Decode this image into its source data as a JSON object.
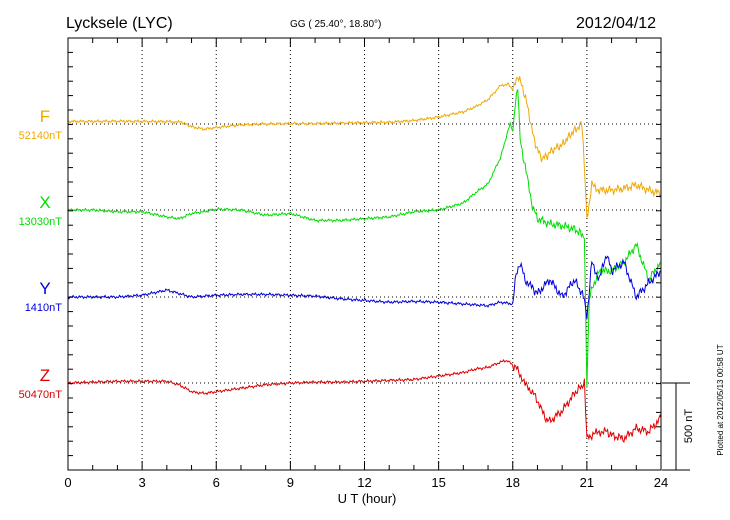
{
  "header": {
    "station": "Lycksele (LYC)",
    "coords": "GG ( 25.40°,  18.80°)",
    "date": "2012/04/12"
  },
  "footer": {
    "plotted_note": "Plotted at 2012/05/13 00:58 UT"
  },
  "colors": {
    "F": "#f0a800",
    "X": "#00dd00",
    "Y": "#0000dd",
    "Z": "#dd0000",
    "axis": "#000000"
  },
  "chart_data": {
    "type": "line",
    "title": "",
    "xlabel": "U T (hour)",
    "ylabel": "",
    "xlim": [
      0,
      24
    ],
    "x_ticks": [
      "0",
      "3",
      "6",
      "9",
      "12",
      "15",
      "18",
      "21",
      "24"
    ],
    "grid": true,
    "scale_bar_label": "500 nT",
    "scale_bar_nT": 500,
    "series": [
      {
        "name": "F",
        "baseline_label": "52140nT",
        "baseline_nT": 52140,
        "x": [
          0,
          1,
          2,
          3,
          4,
          4.6,
          5,
          5.5,
          6,
          7,
          8,
          9,
          10,
          11,
          12,
          13,
          14,
          15,
          16,
          16.5,
          17,
          17.5,
          17.8,
          18,
          18.1,
          18.2,
          18.4,
          18.6,
          18.8,
          19,
          19.2,
          19.4,
          19.6,
          20,
          20.4,
          20.8,
          20.9,
          21,
          21.2,
          21.5,
          22,
          22.5,
          23,
          23.5,
          24
        ],
        "values": [
          15,
          15,
          16,
          15,
          14,
          10,
          -15,
          -30,
          -20,
          -5,
          0,
          2,
          2,
          5,
          8,
          10,
          20,
          40,
          70,
          100,
          140,
          220,
          230,
          200,
          250,
          280,
          210,
          100,
          -50,
          -150,
          -200,
          -180,
          -150,
          -120,
          -50,
          0,
          -250,
          -550,
          -350,
          -380,
          -380,
          -370,
          -350,
          -380,
          -400
        ]
      },
      {
        "name": "X",
        "baseline_label": "13030nT",
        "baseline_nT": 13030,
        "x": [
          0,
          1,
          2,
          3,
          4,
          4.5,
          5,
          5.5,
          6,
          7,
          8,
          9,
          10,
          11,
          12,
          13,
          14,
          15,
          16,
          16.5,
          17,
          17.5,
          17.9,
          18,
          18.1,
          18.2,
          18.3,
          18.5,
          18.8,
          19,
          19.5,
          20,
          20.5,
          20.9,
          21,
          21.1,
          21.3,
          21.5,
          22,
          22.5,
          23,
          23.5,
          24
        ],
        "values": [
          0,
          0,
          -10,
          -10,
          -40,
          -50,
          -20,
          -10,
          5,
          0,
          -30,
          -20,
          -60,
          -60,
          -50,
          -40,
          -10,
          0,
          40,
          100,
          150,
          300,
          500,
          450,
          600,
          700,
          400,
          250,
          20,
          -50,
          -80,
          -90,
          -110,
          -150,
          -1000,
          -500,
          -420,
          -350,
          -350,
          -300,
          -200,
          -400,
          -300
        ]
      },
      {
        "name": "Y",
        "baseline_label": "1410nT",
        "baseline_nT": 1410,
        "x": [
          0,
          1,
          2,
          3,
          4,
          4.5,
          5,
          5.5,
          6,
          7,
          8,
          9,
          10,
          11,
          12,
          13,
          14,
          15,
          16,
          17,
          17.5,
          18,
          18.1,
          18.3,
          18.5,
          18.8,
          19,
          19.5,
          20,
          20.5,
          20.9,
          21,
          21.2,
          21.5,
          21.8,
          22,
          22.5,
          23,
          23.5,
          24
        ],
        "values": [
          0,
          0,
          0,
          10,
          40,
          20,
          0,
          5,
          10,
          15,
          15,
          10,
          5,
          -10,
          -20,
          -30,
          -25,
          -30,
          -40,
          -50,
          -30,
          -40,
          100,
          200,
          100,
          50,
          20,
          100,
          0,
          100,
          -10,
          -120,
          200,
          100,
          250,
          150,
          200,
          0,
          80,
          150
        ]
      },
      {
        "name": "Z",
        "baseline_label": "50470nT",
        "baseline_nT": 50470,
        "x": [
          0,
          1,
          2,
          3,
          4,
          4.5,
          5,
          5.5,
          6,
          7,
          8,
          9,
          10,
          11,
          12,
          13,
          14,
          15,
          16,
          16.5,
          17,
          17.5,
          17.8,
          18,
          18.2,
          18.5,
          18.8,
          19,
          19.3,
          19.5,
          20,
          20.5,
          20.9,
          21,
          21.2,
          21.5,
          21.8,
          22,
          22.5,
          23,
          23.5,
          24
        ],
        "values": [
          0,
          5,
          10,
          10,
          10,
          -10,
          -50,
          -60,
          -50,
          -30,
          -10,
          0,
          5,
          5,
          10,
          15,
          20,
          40,
          60,
          80,
          90,
          120,
          130,
          100,
          80,
          -10,
          -50,
          -100,
          -200,
          -220,
          -160,
          -60,
          0,
          -320,
          -300,
          -280,
          -280,
          -300,
          -320,
          -260,
          -280,
          -200
        ]
      }
    ]
  }
}
